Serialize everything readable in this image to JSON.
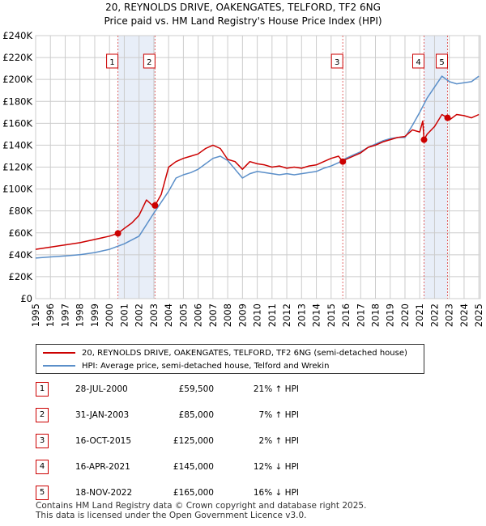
{
  "chart_data": {
    "type": "line",
    "title": "20, REYNOLDS DRIVE, OAKENGATES, TELFORD, TF2 6NG",
    "subtitle": "Price paid vs. HM Land Registry's House Price Index (HPI)",
    "xlim": [
      1995,
      2025.1
    ],
    "ylim": [
      0,
      240000
    ],
    "x_ticks": [
      1995,
      1996,
      1997,
      1998,
      1999,
      2000,
      2001,
      2002,
      2003,
      2004,
      2005,
      2006,
      2007,
      2008,
      2009,
      2010,
      2011,
      2012,
      2013,
      2014,
      2015,
      2016,
      2017,
      2018,
      2019,
      2020,
      2021,
      2022,
      2023,
      2024,
      2025
    ],
    "y_ticks": [
      {
        "value": 0,
        "label": "£0"
      },
      {
        "value": 20000,
        "label": "£20K"
      },
      {
        "value": 40000,
        "label": "£40K"
      },
      {
        "value": 60000,
        "label": "£60K"
      },
      {
        "value": 80000,
        "label": "£80K"
      },
      {
        "value": 100000,
        "label": "£100K"
      },
      {
        "value": 120000,
        "label": "£120K"
      },
      {
        "value": 140000,
        "label": "£140K"
      },
      {
        "value": 160000,
        "label": "£160K"
      },
      {
        "value": 180000,
        "label": "£180K"
      },
      {
        "value": 200000,
        "label": "£200K"
      },
      {
        "value": 220000,
        "label": "£220K"
      },
      {
        "value": 240000,
        "label": "£240K"
      }
    ],
    "shaded_ranges": [
      [
        2000.57,
        2003.08
      ],
      [
        2021.29,
        2022.88
      ]
    ],
    "future_start": 2025.0,
    "series": [
      {
        "name": "20, REYNOLDS DRIVE, OAKENGATES, TELFORD, TF2 6NG (semi-detached house)",
        "color": "#cc0000",
        "x": [
          1995,
          1996,
          1997,
          1998,
          1999,
          2000,
          2000.57,
          2001,
          2001.5,
          2002,
          2002.5,
          2003,
          2003.08,
          2003.5,
          2004,
          2004.5,
          2005,
          2005.5,
          2006,
          2006.5,
          2007,
          2007.5,
          2008,
          2008.5,
          2009,
          2009.5,
          2010,
          2010.5,
          2011,
          2011.5,
          2012,
          2012.5,
          2013,
          2013.5,
          2014,
          2014.5,
          2015,
          2015.5,
          2015.79,
          2016,
          2016.5,
          2017,
          2017.5,
          2018,
          2018.5,
          2019,
          2019.5,
          2020,
          2020.5,
          2021,
          2021.2,
          2021.29,
          2021.5,
          2022,
          2022.5,
          2022.88,
          2023,
          2023.5,
          2024,
          2024.5,
          2025
        ],
        "values": [
          45000,
          47000,
          49000,
          51000,
          54000,
          57000,
          59500,
          64000,
          69000,
          76000,
          90000,
          84000,
          85000,
          95000,
          120000,
          125000,
          128000,
          130000,
          132000,
          137000,
          140000,
          137000,
          127000,
          125000,
          118000,
          125000,
          123000,
          122000,
          120000,
          121000,
          119000,
          120000,
          119000,
          121000,
          122000,
          125000,
          128000,
          130000,
          125000,
          127000,
          130000,
          133000,
          138000,
          140000,
          143000,
          145000,
          147000,
          148000,
          154000,
          152000,
          162000,
          145000,
          150000,
          157000,
          168000,
          165000,
          163000,
          168000,
          167000,
          165000,
          168000
        ]
      },
      {
        "name": "HPI: Average price, semi-detached house, Telford and Wrekin",
        "color": "#5b8fc9",
        "x": [
          1995,
          1996,
          1997,
          1998,
          1999,
          2000,
          2001,
          2002,
          2003,
          2004,
          2004.5,
          2005,
          2005.5,
          2006,
          2006.5,
          2007,
          2007.5,
          2008,
          2008.5,
          2009,
          2009.5,
          2010,
          2010.5,
          2011,
          2011.5,
          2012,
          2012.5,
          2013,
          2013.5,
          2014,
          2014.5,
          2015,
          2015.5,
          2016,
          2016.5,
          2017,
          2017.5,
          2018,
          2018.5,
          2019,
          2019.5,
          2020,
          2020.5,
          2021,
          2021.5,
          2022,
          2022.5,
          2023,
          2023.5,
          2024,
          2024.5,
          2025
        ],
        "values": [
          37000,
          38000,
          39000,
          40000,
          42000,
          45000,
          50000,
          57000,
          78000,
          98000,
          110000,
          113000,
          115000,
          118000,
          123000,
          128000,
          130000,
          126000,
          118000,
          110000,
          114000,
          116000,
          115000,
          114000,
          113000,
          114000,
          113000,
          114000,
          115000,
          116000,
          119000,
          121000,
          124000,
          128000,
          131000,
          134000,
          138000,
          141000,
          144000,
          146000,
          147000,
          147000,
          158000,
          170000,
          183000,
          193000,
          203000,
          198000,
          196000,
          197000,
          198000,
          203000
        ]
      }
    ],
    "sale_points": [
      {
        "label": "1",
        "x": 2000.57,
        "y": 59500
      },
      {
        "label": "2",
        "x": 2003.08,
        "y": 85000
      },
      {
        "label": "3",
        "x": 2015.79,
        "y": 125000
      },
      {
        "label": "4",
        "x": 2021.29,
        "y": 145000
      },
      {
        "label": "5",
        "x": 2022.88,
        "y": 165000
      }
    ]
  },
  "legend": {
    "property_label": "20, REYNOLDS DRIVE, OAKENGATES, TELFORD, TF2 6NG (semi-detached house)",
    "hpi_label": "HPI: Average price, semi-detached house, Telford and Wrekin",
    "property_color": "#cc0000",
    "hpi_color": "#5b8fc9"
  },
  "sales": [
    {
      "num": "1",
      "date": "28-JUL-2000",
      "price": "£59,500",
      "hpi": "21% ↑ HPI"
    },
    {
      "num": "2",
      "date": "31-JAN-2003",
      "price": "£85,000",
      "hpi": "7% ↑ HPI"
    },
    {
      "num": "3",
      "date": "16-OCT-2015",
      "price": "£125,000",
      "hpi": "2% ↑ HPI"
    },
    {
      "num": "4",
      "date": "16-APR-2021",
      "price": "£145,000",
      "hpi": "12% ↓ HPI"
    },
    {
      "num": "5",
      "date": "18-NOV-2022",
      "price": "£165,000",
      "hpi": "16% ↓ HPI"
    }
  ],
  "footer": {
    "line1": "Contains HM Land Registry data © Crown copyright and database right 2025.",
    "line2": "This data is licensed under the Open Government Licence v3.0."
  }
}
